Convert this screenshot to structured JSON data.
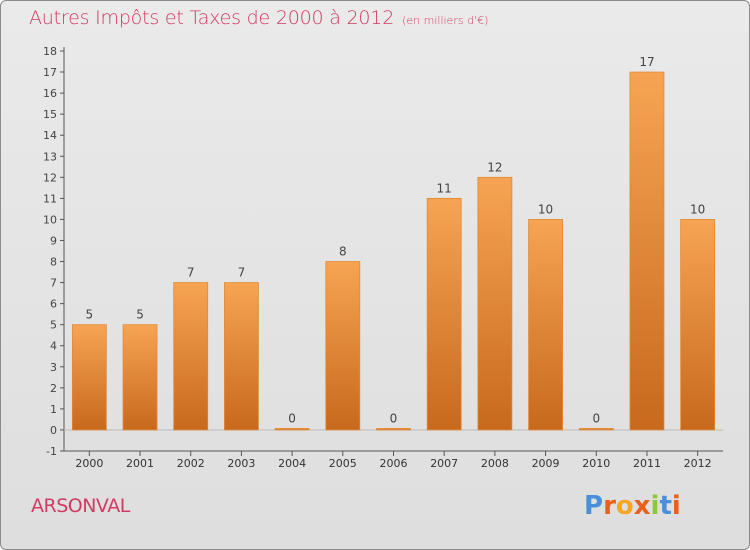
{
  "header": {
    "title": "Autres Impôts et Taxes de 2000 à 2012",
    "unit": "(en milliers d'€)"
  },
  "footer": {
    "place": "ARSONVAL",
    "logo_text": "Proxiti",
    "logo_colors": [
      "#4a90d9",
      "#e8601c",
      "#f5a623",
      "#e8601c",
      "#8dc63f",
      "#4a90d9",
      "#e8601c"
    ]
  },
  "colors": {
    "title": "#d23b63",
    "bar_top": "#f6a453",
    "bar_bottom": "#c8691d",
    "axis": "#555555",
    "grid": "#cfcfcf"
  },
  "chart_data": {
    "type": "bar",
    "title": "Autres Impôts et Taxes de 2000 à 2012",
    "subtitle": "(en milliers d'€)",
    "categories": [
      "2000",
      "2001",
      "2002",
      "2003",
      "2004",
      "2005",
      "2006",
      "2007",
      "2008",
      "2009",
      "2010",
      "2011",
      "2012"
    ],
    "values": [
      5,
      5,
      7,
      7,
      0,
      8,
      0,
      11,
      12,
      10,
      0,
      17,
      10
    ],
    "data_labels": [
      "5",
      "5",
      "7",
      "7",
      "0",
      "8",
      "0",
      "11",
      "12",
      "10",
      "0",
      "17",
      "10"
    ],
    "y_ticks": [
      "-1",
      "0",
      "1",
      "2",
      "3",
      "4",
      "5",
      "6",
      "7",
      "8",
      "9",
      "10",
      "11",
      "12",
      "13",
      "14",
      "15",
      "16",
      "17",
      "18"
    ],
    "ylim": [
      -1,
      18
    ],
    "grid": false,
    "legend": "none"
  }
}
